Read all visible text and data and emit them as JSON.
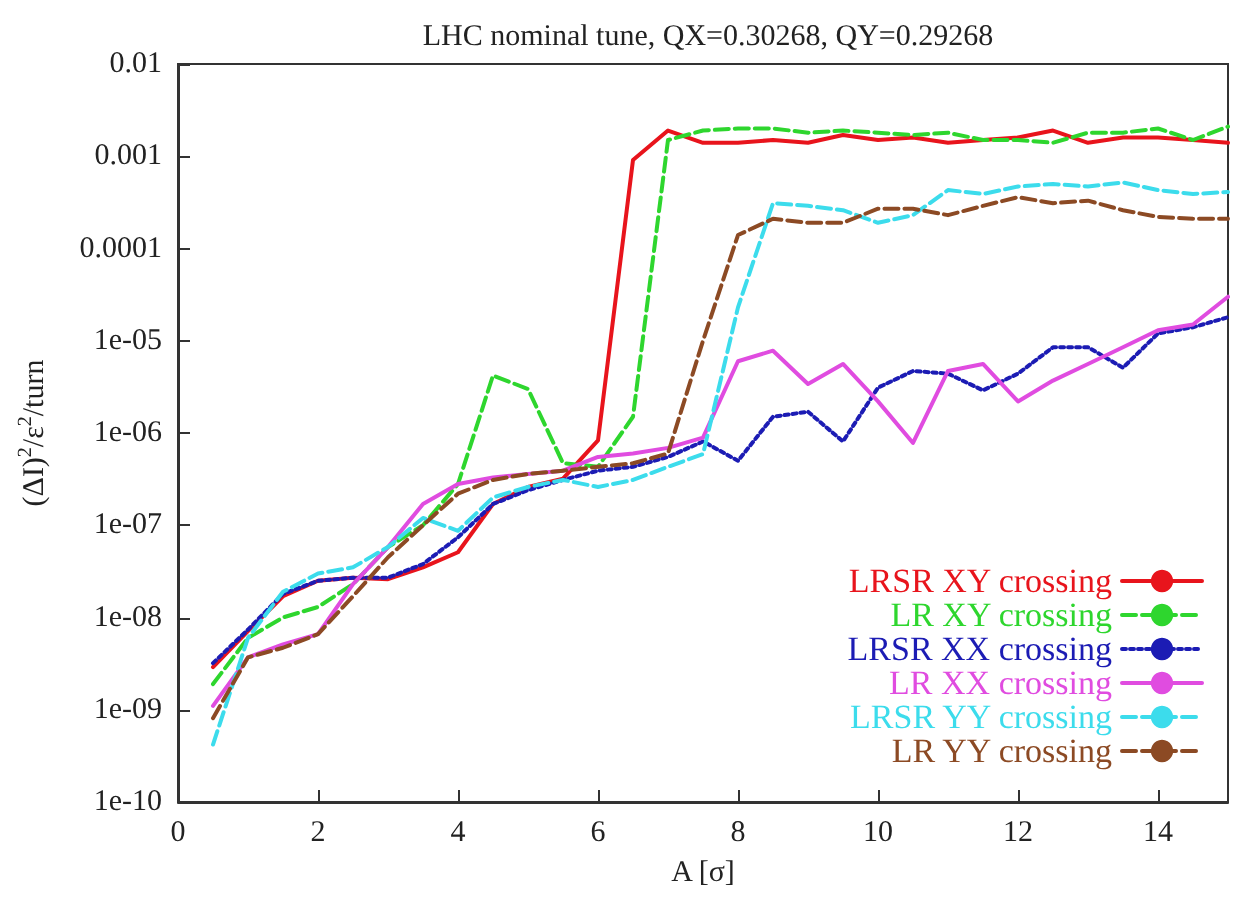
{
  "chart_data": {
    "type": "line",
    "title": "LHC nominal tune, QX=0.30268, QY=0.29268",
    "xlabel": "A [σ]",
    "ylabel": "(ΔI)$^{2}$/ε$^{2}$/turn",
    "log": "y",
    "grid": false,
    "legend": "bottom right",
    "marker": "none",
    "xlim": [
      0,
      15
    ],
    "xticks": [
      0,
      2,
      4,
      6,
      8,
      10,
      12,
      14
    ],
    "ylim": [
      1e-10,
      0.01
    ],
    "yticks": [
      {
        "value": 1e-10,
        "label": "1e-10"
      },
      {
        "value": 1e-09,
        "label": "1e-09"
      },
      {
        "value": 1e-08,
        "label": "1e-08"
      },
      {
        "value": 1e-07,
        "label": "1e-07"
      },
      {
        "value": 1e-06,
        "label": "1e-06"
      },
      {
        "value": 1e-05,
        "label": "1e-05"
      },
      0.0001,
      0.001,
      0.01
    ],
    "x": [
      0.5,
      1,
      1.5,
      2,
      2.5,
      3,
      3.5,
      4,
      4.5,
      5,
      5.5,
      6,
      6.5,
      7,
      7.5,
      8,
      8.5,
      9,
      9.5,
      10,
      10.5,
      11,
      11.5,
      12,
      12.5,
      13,
      13.5,
      14,
      14.5,
      15
    ],
    "series": [
      {
        "name": "LRSR XY crossing",
        "color": "#e8141c",
        "line_style": "solid",
        "values": [
          2.9e-09,
          7.1e-09,
          1.7e-08,
          2.5e-08,
          2.7e-08,
          2.6e-08,
          3.5e-08,
          5.1e-08,
          1.7e-07,
          2.6e-07,
          3.2e-07,
          8.3e-07,
          0.00091,
          0.0019,
          0.0014,
          0.0014,
          0.0015,
          0.0014,
          0.0017,
          0.0015,
          0.0016,
          0.0014,
          0.0015,
          0.0016,
          0.0019,
          0.0014,
          0.0016,
          0.0016,
          0.0015,
          0.0014
        ]
      },
      {
        "name": "LR XY crossing",
        "color": "#2ed62e",
        "line_style": "dashed",
        "values": [
          1.9e-09,
          6e-09,
          1e-08,
          1.3e-08,
          2.3e-08,
          5.8e-08,
          1e-07,
          2.8e-07,
          4.2e-06,
          3e-06,
          4.7e-07,
          4.3e-07,
          1.5e-06,
          0.0015,
          0.0019,
          0.002,
          0.002,
          0.0018,
          0.0019,
          0.0018,
          0.0017,
          0.0018,
          0.0015,
          0.0015,
          0.0014,
          0.0018,
          0.0018,
          0.002,
          0.0015,
          0.0021
        ]
      },
      {
        "name": "LRSR XX crossing",
        "color": "#1c1cb4",
        "line_style": "dotted",
        "values": [
          3.2e-09,
          7.4e-09,
          1.8e-08,
          2.5e-08,
          2.7e-08,
          2.7e-08,
          3.8e-08,
          7.4e-08,
          1.7e-07,
          2.4e-07,
          3.1e-07,
          3.9e-07,
          4.3e-07,
          5.5e-07,
          8.1e-07,
          5e-07,
          1.5e-06,
          1.7e-06,
          8.1e-07,
          3.1e-06,
          4.7e-06,
          4.4e-06,
          2.9e-06,
          4.4e-06,
          8.5e-06,
          8.5e-06,
          5.1e-06,
          1.2e-05,
          1.4e-05,
          1.8e-05
        ]
      },
      {
        "name": "LR XX crossing",
        "color": "#e04ce0",
        "line_style": "solid",
        "values": [
          1.1e-09,
          3.7e-09,
          5.1e-09,
          6.6e-09,
          2.3e-08,
          5.8e-08,
          1.7e-07,
          2.8e-07,
          3.3e-07,
          3.6e-07,
          3.9e-07,
          5.5e-07,
          6e-07,
          6.9e-07,
          8.9e-07,
          6e-06,
          7.8e-06,
          3.4e-06,
          5.6e-06,
          2.2e-06,
          7.8e-07,
          4.7e-06,
          5.6e-06,
          2.2e-06,
          3.7e-06,
          5.6e-06,
          8.5e-06,
          1.3e-05,
          1.5e-05,
          3e-05
        ]
      },
      {
        "name": "LRSR YY crossing",
        "color": "#3cdcec",
        "line_style": "dashed",
        "values": [
          4.2e-10,
          6e-09,
          1.9e-08,
          3e-08,
          3.5e-08,
          5.8e-08,
          1.2e-07,
          8.7e-08,
          2e-07,
          2.6e-07,
          3.1e-07,
          2.6e-07,
          3.1e-07,
          4.3e-07,
          5.9e-07,
          2.3e-05,
          0.00031,
          0.00029,
          0.00026,
          0.00019,
          0.00023,
          0.00043,
          0.00039,
          0.00047,
          0.0005,
          0.00047,
          0.00052,
          0.00043,
          0.00039,
          0.00041
        ]
      },
      {
        "name": "LR YY crossing",
        "color": "#8c4a24",
        "line_style": "dashed",
        "values": [
          8.1e-10,
          3.7e-09,
          4.7e-09,
          6.6e-09,
          1.7e-08,
          4.5e-08,
          1e-07,
          2.2e-07,
          3.1e-07,
          3.6e-07,
          3.9e-07,
          4.3e-07,
          4.7e-07,
          6e-07,
          1e-05,
          0.00014,
          0.00021,
          0.00019,
          0.00019,
          0.00027,
          0.00027,
          0.00023,
          0.00029,
          0.00036,
          0.00031,
          0.00033,
          0.00026,
          0.00022,
          0.00021,
          0.00021
        ]
      }
    ]
  }
}
